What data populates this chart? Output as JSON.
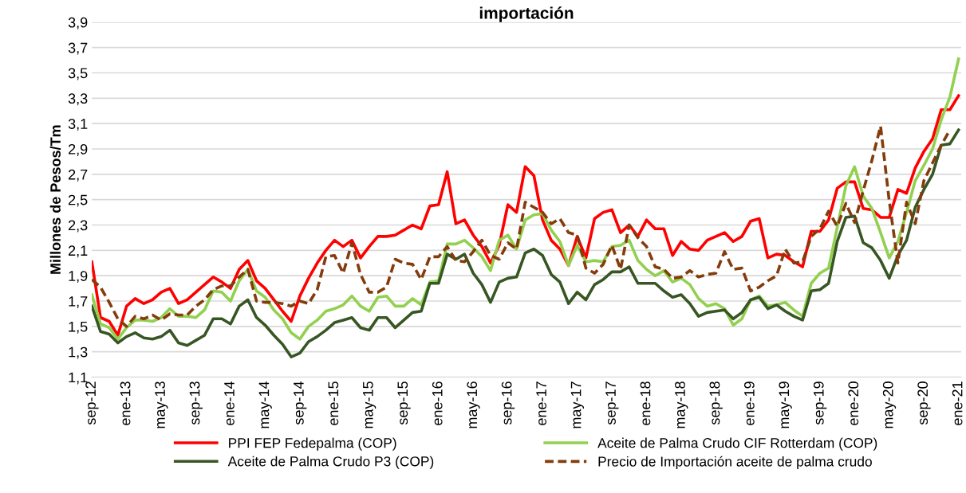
{
  "chart_data": {
    "type": "line",
    "title": "importación",
    "ylabel": "Millones de Pesos/Tm",
    "categories": [
      "sep-12",
      null,
      null,
      null,
      "ene-13",
      null,
      null,
      null,
      "may-13",
      null,
      null,
      null,
      "sep-13",
      null,
      null,
      null,
      "ene-14",
      null,
      null,
      null,
      "may-14",
      null,
      null,
      null,
      "sep-14",
      null,
      null,
      null,
      "ene-15",
      null,
      null,
      null,
      "may-15",
      null,
      null,
      null,
      "sep-15",
      null,
      null,
      null,
      "ene-16",
      null,
      null,
      null,
      "may-16",
      null,
      null,
      null,
      "sep-16",
      null,
      null,
      null,
      "ene-17",
      null,
      null,
      null,
      "may-17",
      null,
      null,
      null,
      "sep-17",
      null,
      null,
      null,
      "ene-18",
      null,
      null,
      null,
      "may-18",
      null,
      null,
      null,
      "sep-18",
      null,
      null,
      null,
      "ene-19",
      null,
      null,
      null,
      "may-19",
      null,
      null,
      null,
      "sep-19",
      null,
      null,
      null,
      "ene-20",
      null,
      null,
      null,
      "may-20",
      null,
      null,
      null,
      "sep-20",
      null,
      null,
      null,
      "ene-21"
    ],
    "series": [
      {
        "name": "PPI FEP Fedepalma (COP)",
        "color": "#ff0000",
        "values": [
          2.01,
          1.57,
          1.54,
          1.43,
          1.66,
          1.72,
          1.68,
          1.71,
          1.77,
          1.8,
          1.68,
          1.71,
          1.77,
          1.83,
          1.89,
          1.85,
          1.8,
          1.95,
          2.02,
          1.86,
          1.8,
          1.71,
          1.62,
          1.54,
          1.74,
          1.88,
          2.0,
          2.1,
          2.18,
          2.13,
          2.18,
          2.04,
          2.13,
          2.21,
          2.21,
          2.22,
          2.26,
          2.3,
          2.27,
          2.45,
          2.46,
          2.72,
          2.31,
          2.34,
          2.22,
          2.13,
          2.0,
          2.14,
          2.46,
          2.4,
          2.76,
          2.69,
          2.34,
          2.18,
          2.11,
          1.98,
          2.21,
          2.04,
          2.35,
          2.4,
          2.42,
          2.24,
          2.3,
          2.21,
          2.34,
          2.27,
          2.27,
          2.06,
          2.17,
          2.11,
          2.1,
          2.18,
          2.21,
          2.24,
          2.17,
          2.21,
          2.33,
          2.35,
          2.04,
          2.07,
          2.06,
          2.01,
          1.97,
          2.25,
          2.25,
          2.34,
          2.59,
          2.64,
          2.64,
          2.43,
          2.42,
          2.36,
          2.36,
          2.58,
          2.55,
          2.75,
          2.88,
          2.98,
          3.21,
          3.21,
          3.32
        ]
      },
      {
        "name": "Aceite de Palma Crudo CIF Rotterdam (COP)",
        "color": "#92d050",
        "values": [
          1.75,
          1.52,
          1.49,
          1.4,
          1.49,
          1.55,
          1.55,
          1.54,
          1.57,
          1.64,
          1.58,
          1.58,
          1.57,
          1.63,
          1.78,
          1.77,
          1.7,
          1.86,
          1.95,
          1.78,
          1.73,
          1.63,
          1.56,
          1.45,
          1.4,
          1.5,
          1.55,
          1.62,
          1.64,
          1.67,
          1.74,
          1.66,
          1.62,
          1.73,
          1.74,
          1.66,
          1.66,
          1.72,
          1.67,
          1.85,
          1.86,
          2.15,
          2.15,
          2.18,
          2.12,
          2.05,
          1.94,
          2.18,
          2.22,
          2.11,
          2.34,
          2.38,
          2.39,
          2.26,
          2.17,
          1.98,
          2.14,
          2.01,
          2.02,
          2.01,
          2.13,
          2.14,
          2.18,
          2.02,
          1.95,
          1.9,
          1.94,
          1.85,
          1.88,
          1.83,
          1.72,
          1.66,
          1.68,
          1.64,
          1.51,
          1.56,
          1.71,
          1.74,
          1.66,
          1.67,
          1.69,
          1.63,
          1.58,
          1.84,
          1.92,
          1.96,
          2.28,
          2.61,
          2.76,
          2.53,
          2.43,
          2.24,
          2.04,
          2.17,
          2.4,
          2.65,
          2.77,
          2.9,
          3.13,
          3.31,
          3.61
        ]
      },
      {
        "name": "Aceite de Palma Crudo P3 (COP)",
        "color": "#375623",
        "values": [
          1.66,
          1.46,
          1.44,
          1.37,
          1.42,
          1.45,
          1.41,
          1.4,
          1.42,
          1.47,
          1.37,
          1.35,
          1.39,
          1.43,
          1.56,
          1.56,
          1.52,
          1.66,
          1.71,
          1.57,
          1.51,
          1.43,
          1.36,
          1.26,
          1.29,
          1.38,
          1.42,
          1.47,
          1.53,
          1.55,
          1.57,
          1.49,
          1.47,
          1.57,
          1.57,
          1.49,
          1.55,
          1.61,
          1.62,
          1.84,
          1.84,
          2.07,
          2.03,
          2.07,
          1.92,
          1.83,
          1.69,
          1.85,
          1.88,
          1.89,
          2.08,
          2.11,
          2.06,
          1.91,
          1.85,
          1.68,
          1.77,
          1.71,
          1.83,
          1.87,
          1.93,
          1.93,
          1.97,
          1.84,
          1.84,
          1.84,
          1.78,
          1.73,
          1.75,
          1.68,
          1.58,
          1.61,
          1.62,
          1.63,
          1.56,
          1.61,
          1.71,
          1.73,
          1.64,
          1.67,
          1.62,
          1.58,
          1.55,
          1.78,
          1.79,
          1.84,
          2.17,
          2.36,
          2.37,
          2.16,
          2.12,
          2.02,
          1.88,
          2.06,
          2.18,
          2.44,
          2.58,
          2.7,
          2.93,
          2.94,
          3.05
        ]
      },
      {
        "name": "Precio de Importación aceite de palma crudo",
        "color": "#843c0c",
        "line_style": "dashed",
        "values": [
          1.87,
          1.81,
          1.69,
          1.56,
          1.5,
          1.58,
          1.56,
          1.59,
          1.55,
          1.6,
          1.59,
          1.59,
          1.66,
          1.71,
          1.79,
          1.82,
          1.82,
          1.89,
          1.95,
          1.7,
          1.69,
          1.69,
          1.68,
          1.66,
          1.7,
          1.68,
          1.79,
          2.05,
          2.06,
          1.92,
          2.16,
          1.91,
          1.77,
          1.77,
          1.81,
          2.03,
          2.0,
          1.99,
          1.87,
          2.05,
          2.05,
          2.13,
          2.02,
          2.01,
          2.09,
          2.18,
          2.06,
          2.03,
          2.16,
          2.11,
          2.48,
          2.44,
          2.4,
          2.31,
          2.35,
          2.24,
          2.22,
          1.96,
          1.92,
          1.99,
          2.14,
          1.95,
          2.3,
          2.2,
          2.13,
          1.97,
          1.95,
          1.88,
          1.89,
          1.94,
          1.89,
          1.91,
          1.92,
          2.09,
          1.95,
          1.96,
          1.78,
          1.81,
          1.86,
          1.9,
          2.11,
          2.0,
          2.01,
          2.21,
          2.27,
          2.41,
          2.29,
          2.47,
          2.32,
          2.57,
          2.81,
          3.08,
          2.49,
          2.0,
          2.48,
          2.31,
          2.65,
          2.79,
          2.93,
          3.05,
          null
        ]
      }
    ],
    "ylim": [
      1.1,
      3.9
    ],
    "yticks": [
      {
        "value": 1.1,
        "label": "1,1"
      },
      {
        "value": 1.3,
        "label": "1,3"
      },
      {
        "value": 1.5,
        "label": "1,5"
      },
      {
        "value": 1.7,
        "label": "1,7"
      },
      {
        "value": 1.9,
        "label": "1,9"
      },
      {
        "value": 2.1,
        "label": "2,1"
      },
      {
        "value": 2.3,
        "label": "2,3"
      },
      {
        "value": 2.5,
        "label": "2,5"
      },
      {
        "value": 2.7,
        "label": "2,7"
      },
      {
        "value": 2.9,
        "label": "2,9"
      },
      {
        "value": 3.1,
        "label": "3,1"
      },
      {
        "value": 3.3,
        "label": "3,3"
      },
      {
        "value": 3.5,
        "label": "3,5"
      },
      {
        "value": 3.7,
        "label": "3,7"
      },
      {
        "value": 3.9,
        "label": "3,9"
      }
    ],
    "grid": "y",
    "legend": "bottom",
    "marker": "none"
  }
}
